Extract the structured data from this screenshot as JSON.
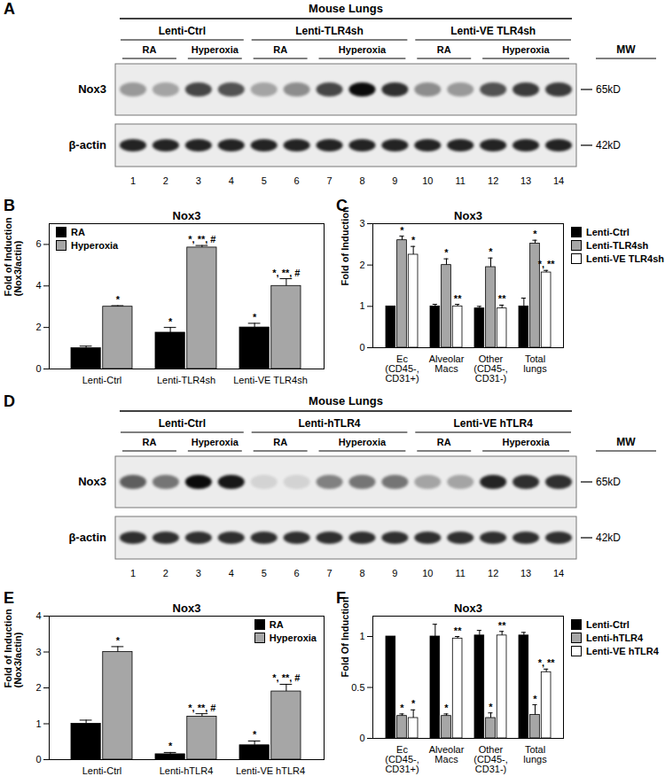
{
  "chart_data": [
    {
      "panel": "B",
      "type": "bar",
      "title": "Nox3",
      "y_label": "Fold of Induction (Nox3/actin)",
      "categories": [
        "Lenti-Ctrl",
        "Lenti-TLR4sh",
        "Lenti-VE TLR4sh"
      ],
      "series": [
        {
          "name": "RA",
          "color": "#000000",
          "values": [
            1.0,
            1.75,
            2.0
          ],
          "errors": [
            0.1,
            0.25,
            0.2
          ],
          "annotations": [
            null,
            "*",
            "*"
          ]
        },
        {
          "name": "Hyperoxia",
          "color": "#a6a6a6",
          "values": [
            3.0,
            5.85,
            4.0
          ],
          "errors": [
            0.05,
            0.1,
            0.35
          ],
          "annotations": [
            "*",
            "*, **, #",
            "*, **, #"
          ]
        }
      ],
      "ylim": [
        0,
        7
      ],
      "yticks": [
        0,
        2,
        4,
        6
      ],
      "legend": "top-left"
    },
    {
      "panel": "C",
      "type": "bar",
      "title": "Nox3",
      "y_label": "Fold of Induction",
      "categories": [
        "Ec (CD45-, CD31+)",
        "Alveolar Macs",
        "Other (CD45-, CD31-)",
        "Total lungs"
      ],
      "series": [
        {
          "name": "Lenti-Ctrl",
          "color": "#000000",
          "values": [
            1.0,
            1.0,
            0.95,
            1.0
          ],
          "errors": [
            0,
            0.05,
            0.05,
            0.2
          ]
        },
        {
          "name": "Lenti-TLR4sh",
          "color": "#a6a6a6",
          "values": [
            2.6,
            2.0,
            1.95,
            2.52
          ],
          "errors": [
            0.1,
            0.15,
            0.22,
            0.08
          ],
          "annotations": [
            "*",
            "*",
            "*",
            "*"
          ]
        },
        {
          "name": "Lenti-VE TLR4sh",
          "color": "#ffffff",
          "values": [
            2.25,
            1.0,
            0.95,
            1.82
          ],
          "errors": [
            0.2,
            0.05,
            0.08,
            0.05
          ],
          "annotations": [
            "*",
            "**",
            "**",
            "*, **"
          ]
        }
      ],
      "ylim": [
        0,
        3
      ],
      "yticks": [
        0,
        1,
        2,
        3
      ],
      "legend": "top-right"
    },
    {
      "panel": "E",
      "type": "bar",
      "title": "Nox3",
      "y_label": "Fold of Induction (Nox3/actin)",
      "categories": [
        "Lenti-Ctrl",
        "Lenti-hTLR4",
        "Lenti-VE hTLR4"
      ],
      "series": [
        {
          "name": "RA",
          "color": "#000000",
          "values": [
            1.0,
            0.15,
            0.4
          ],
          "errors": [
            0.1,
            0.05,
            0.12
          ],
          "annotations": [
            null,
            "*",
            "*"
          ]
        },
        {
          "name": "Hyperoxia",
          "color": "#a6a6a6",
          "values": [
            3.0,
            1.2,
            1.9
          ],
          "errors": [
            0.15,
            0.08,
            0.2
          ],
          "annotations": [
            "*",
            "*, **, #",
            "*, **, #"
          ]
        }
      ],
      "ylim": [
        0,
        4
      ],
      "yticks": [
        0,
        1,
        2,
        3,
        4
      ],
      "legend": "top-right"
    },
    {
      "panel": "F",
      "type": "bar",
      "title": "Nox3",
      "y_label": "Fold Of Induction",
      "categories": [
        "Ec (CD45-, CD31+)",
        "Alveolar Macs",
        "Other (CD45-, CD31-)",
        "Total lungs"
      ],
      "series": [
        {
          "name": "Lenti-Ctrl",
          "color": "#000000",
          "values": [
            1.0,
            1.0,
            1.01,
            1.01
          ],
          "errors": [
            0,
            0.12,
            0.05,
            0.03
          ]
        },
        {
          "name": "Lenti-hTLR4",
          "color": "#a6a6a6",
          "values": [
            0.22,
            0.22,
            0.2,
            0.23
          ],
          "errors": [
            0.02,
            0.02,
            0.05,
            0.1
          ],
          "annotations": [
            "*",
            "*",
            "*",
            "*"
          ]
        },
        {
          "name": "Lenti-VE hTLR4",
          "color": "#ffffff",
          "values": [
            0.2,
            0.98,
            1.01,
            0.65
          ],
          "errors": [
            0.08,
            0.02,
            0.04,
            0.03
          ],
          "annotations": [
            "*",
            "**",
            "**",
            "*, **"
          ]
        }
      ],
      "ylim": [
        0,
        1.2
      ],
      "yticks": [
        0,
        0.5,
        1
      ],
      "legend": "top-right"
    }
  ],
  "blots": [
    {
      "panel": "A",
      "title": "Mouse Lungs",
      "mw_label": "MW",
      "lanes": [
        1,
        2,
        3,
        4,
        5,
        6,
        7,
        8,
        9,
        10,
        11,
        12,
        13,
        14
      ],
      "groups": [
        {
          "name": "Lenti-Ctrl",
          "subgroups": [
            {
              "name": "RA",
              "lanes": [
                1,
                2
              ]
            },
            {
              "name": "Hyperoxia",
              "lanes": [
                3,
                4
              ]
            }
          ]
        },
        {
          "name": "Lenti-TLR4sh",
          "subgroups": [
            {
              "name": "RA",
              "lanes": [
                5,
                6
              ]
            },
            {
              "name": "Hyperoxia",
              "lanes": [
                7,
                8,
                9
              ]
            }
          ]
        },
        {
          "name": "Lenti-VE TLR4sh",
          "subgroups": [
            {
              "name": "RA",
              "lanes": [
                10,
                11
              ]
            },
            {
              "name": "Hyperoxia",
              "lanes": [
                12,
                13,
                14
              ]
            }
          ]
        }
      ],
      "rows": [
        {
          "name": "Nox3",
          "mw": "65kD",
          "band_intensity": [
            0.35,
            0.3,
            0.7,
            0.65,
            0.3,
            0.4,
            0.7,
            0.95,
            0.8,
            0.4,
            0.35,
            0.65,
            0.75,
            0.75
          ]
        },
        {
          "name": "β-actin",
          "mw": "42kD",
          "band_intensity": [
            0.85,
            0.85,
            0.85,
            0.85,
            0.85,
            0.85,
            0.85,
            0.85,
            0.85,
            0.85,
            0.85,
            0.85,
            0.85,
            0.85
          ]
        }
      ]
    },
    {
      "panel": "D",
      "title": "Mouse Lungs",
      "mw_label": "MW",
      "lanes": [
        1,
        2,
        3,
        4,
        5,
        6,
        7,
        8,
        9,
        10,
        11,
        12,
        13,
        14
      ],
      "groups": [
        {
          "name": "Lenti-Ctrl",
          "subgroups": [
            {
              "name": "RA",
              "lanes": [
                1,
                2
              ]
            },
            {
              "name": "Hyperoxia",
              "lanes": [
                3,
                4
              ]
            }
          ]
        },
        {
          "name": "Lenti-hTLR4",
          "subgroups": [
            {
              "name": "RA",
              "lanes": [
                5,
                6
              ]
            },
            {
              "name": "Hyperoxia",
              "lanes": [
                7,
                8,
                9
              ]
            }
          ]
        },
        {
          "name": "Lenti-VE hTLR4",
          "subgroups": [
            {
              "name": "RA",
              "lanes": [
                10,
                11
              ]
            },
            {
              "name": "Hyperoxia",
              "lanes": [
                12,
                13,
                14
              ]
            }
          ]
        }
      ],
      "rows": [
        {
          "name": "Nox3",
          "mw": "65kD",
          "band_intensity": [
            0.6,
            0.5,
            0.95,
            0.9,
            0.1,
            0.1,
            0.45,
            0.5,
            0.5,
            0.3,
            0.3,
            0.85,
            0.8,
            0.8
          ]
        },
        {
          "name": "β-actin",
          "mw": "42kD",
          "band_intensity": [
            0.8,
            0.8,
            0.8,
            0.8,
            0.8,
            0.8,
            0.8,
            0.8,
            0.8,
            0.8,
            0.8,
            0.8,
            0.8,
            0.8
          ]
        }
      ]
    }
  ]
}
